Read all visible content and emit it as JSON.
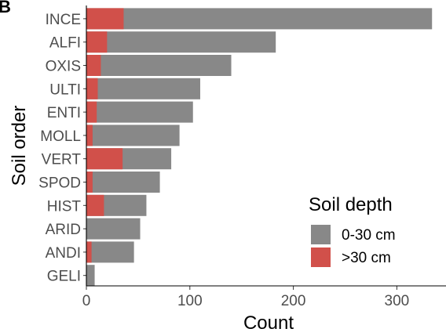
{
  "panel_label": "B",
  "chart_data": {
    "type": "bar",
    "orientation": "horizontal",
    "stacked": "overlay",
    "categories": [
      "INCE",
      "ALFI",
      "OXIS",
      "ULTI",
      "ENTI",
      "MOLL",
      "VERT",
      "SPOD",
      "HIST",
      "ARID",
      "ANDI",
      "GELI"
    ],
    "series": [
      {
        "name": "0-30 cm",
        "color": "#888888",
        "values": [
          334,
          183,
          140,
          110,
          103,
          90,
          82,
          71,
          58,
          52,
          46,
          8
        ]
      },
      {
        "name": ">30 cm",
        "color": "#D1504A",
        "values": [
          36,
          20,
          14,
          11,
          10,
          6,
          35,
          6,
          17,
          0,
          5,
          0
        ]
      }
    ],
    "xlabel": "Count",
    "ylabel": "Soil order",
    "xlim": [
      0,
      350
    ],
    "xticks": [
      "0",
      "100",
      "200",
      "300"
    ],
    "legend": {
      "title": "Soil depth",
      "position": "inside-bottom-right"
    },
    "grid": false
  }
}
